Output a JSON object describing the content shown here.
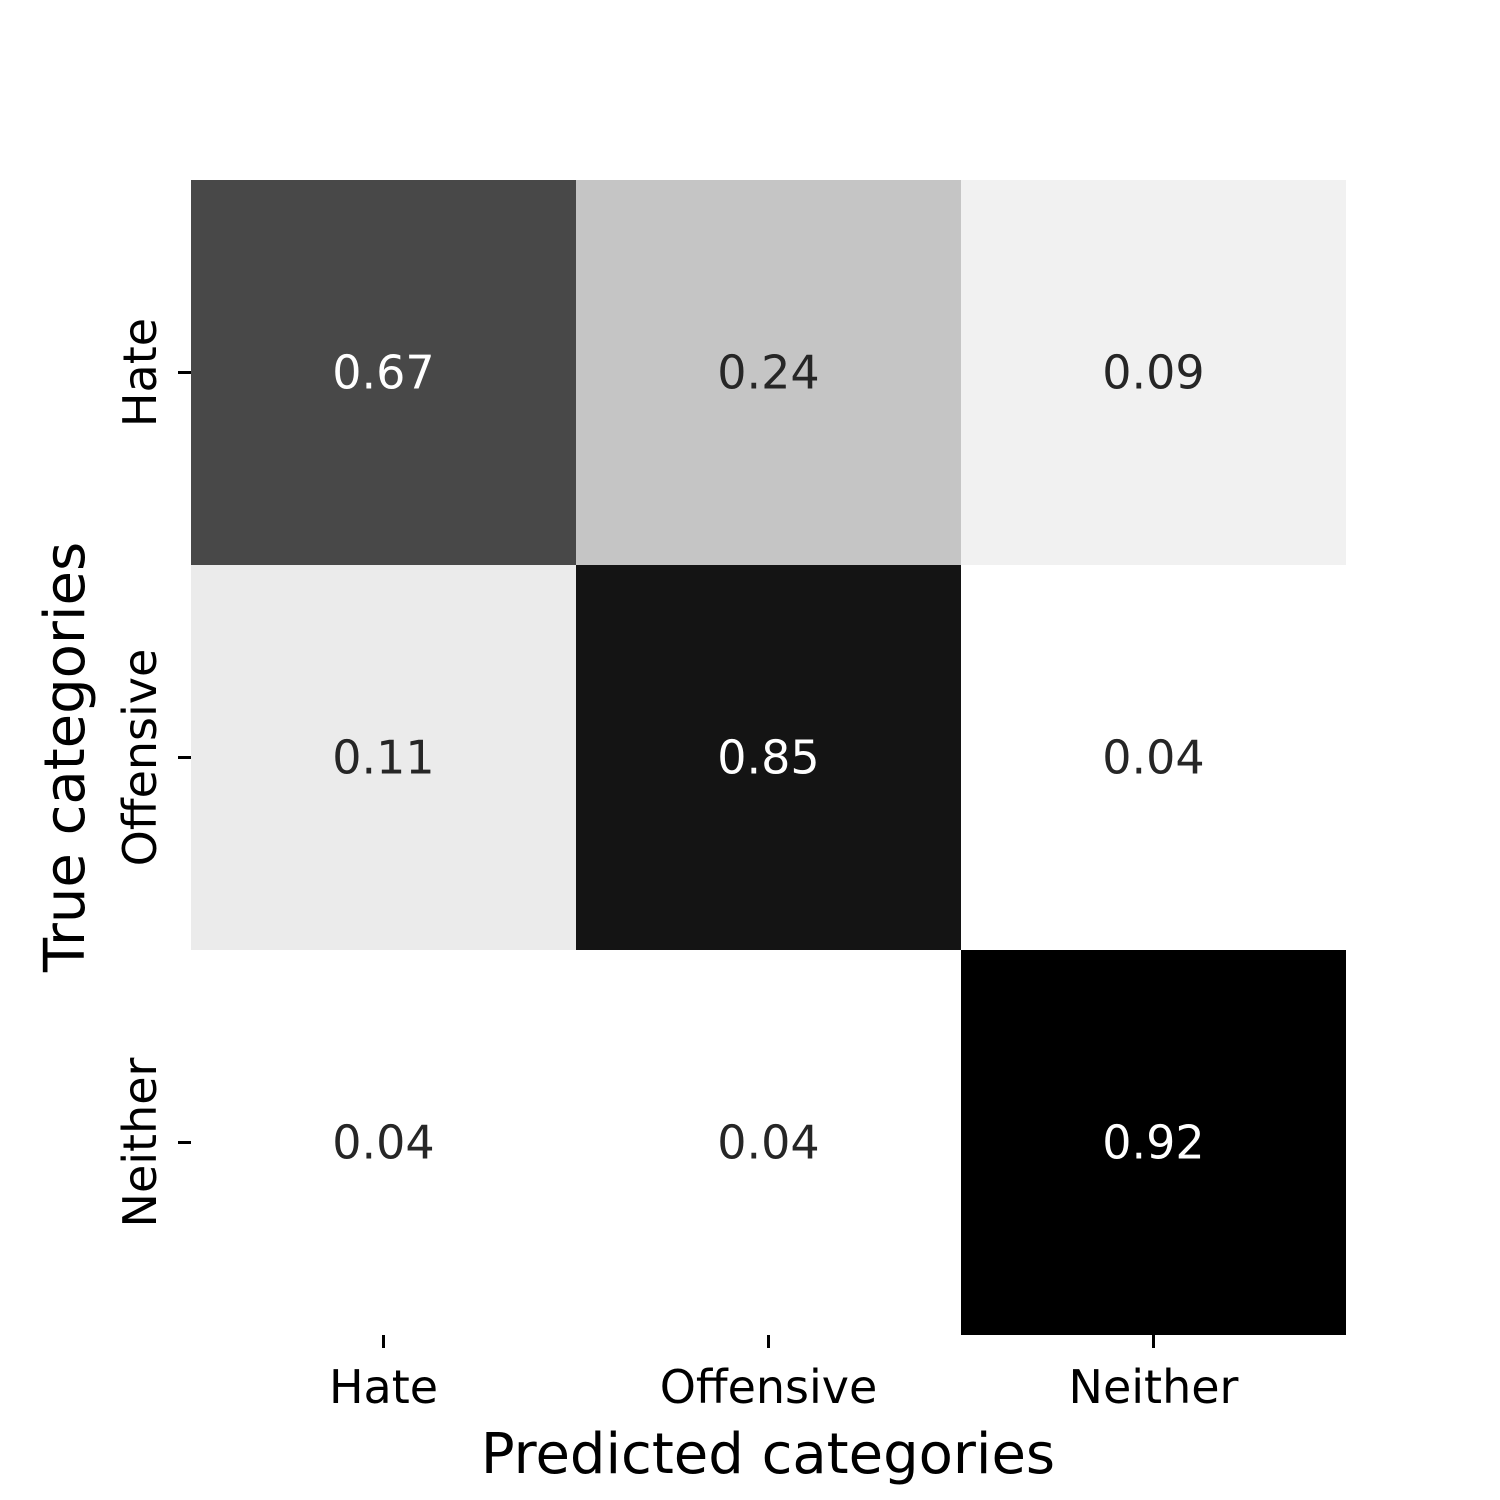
{
  "chart_data": {
    "type": "heatmap",
    "title": "",
    "xlabel": "Predicted categories",
    "ylabel": "True categories",
    "x_categories": [
      "Hate",
      "Offensive",
      "Neither"
    ],
    "y_categories": [
      "Hate",
      "Offensive",
      "Neither"
    ],
    "values": [
      [
        0.67,
        0.24,
        0.09
      ],
      [
        0.11,
        0.85,
        0.04
      ],
      [
        0.04,
        0.04,
        0.92
      ]
    ],
    "value_labels": [
      [
        "0.67",
        "0.24",
        "0.09"
      ],
      [
        "0.11",
        "0.85",
        "0.04"
      ],
      [
        "0.04",
        "0.04",
        "0.92"
      ]
    ],
    "colormap": "Greys",
    "value_range": [
      0.04,
      0.92
    ],
    "colorbar": false,
    "grid": false,
    "legend": "none"
  }
}
